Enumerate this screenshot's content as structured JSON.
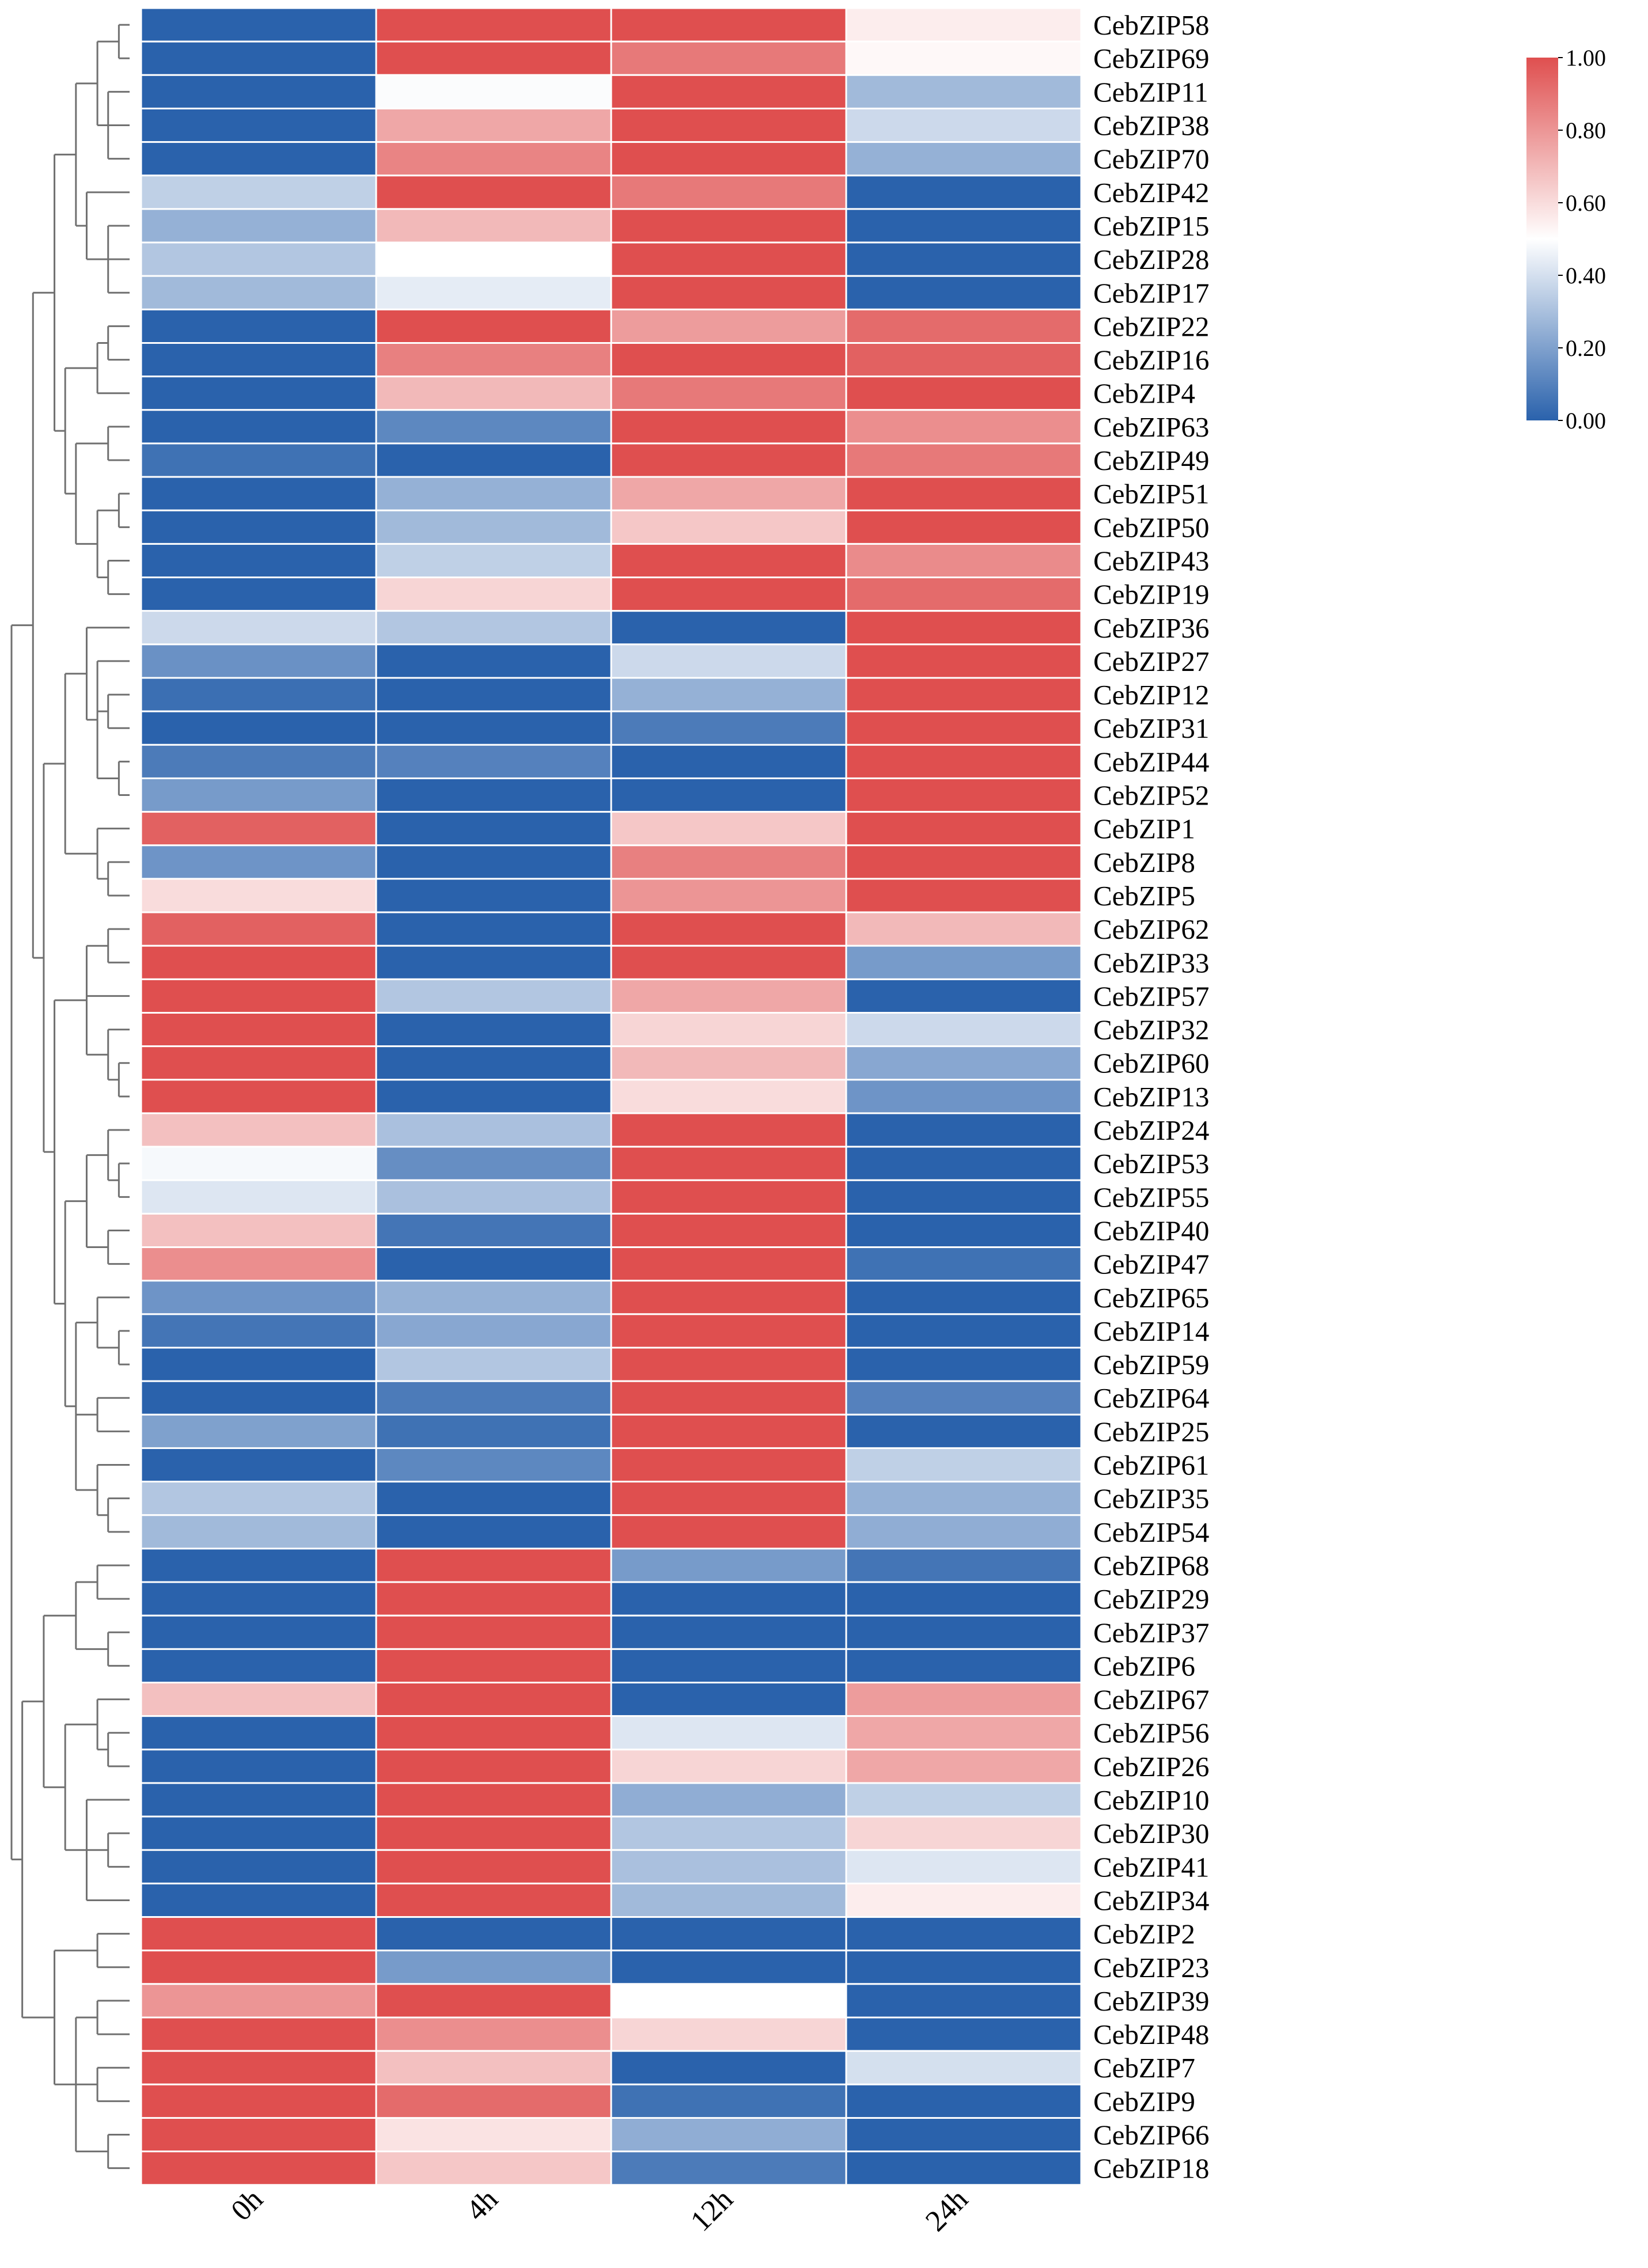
{
  "chart_data": {
    "type": "heatmap",
    "columns": [
      "0h",
      "4h",
      "12h",
      "24h"
    ],
    "rows": [
      "CebZIP58",
      "CebZIP69",
      "CebZIP11",
      "CebZIP38",
      "CebZIP70",
      "CebZIP42",
      "CebZIP15",
      "CebZIP28",
      "CebZIP17",
      "CebZIP22",
      "CebZIP16",
      "CebZIP4",
      "CebZIP63",
      "CebZIP49",
      "CebZIP51",
      "CebZIP50",
      "CebZIP43",
      "CebZIP19",
      "CebZIP36",
      "CebZIP27",
      "CebZIP12",
      "CebZIP31",
      "CebZIP44",
      "CebZIP52",
      "CebZIP1",
      "CebZIP8",
      "CebZIP5",
      "CebZIP62",
      "CebZIP33",
      "CebZIP57",
      "CebZIP32",
      "CebZIP60",
      "CebZIP13",
      "CebZIP24",
      "CebZIP53",
      "CebZIP55",
      "CebZIP40",
      "CebZIP47",
      "CebZIP65",
      "CebZIP14",
      "CebZIP59",
      "CebZIP64",
      "CebZIP25",
      "CebZIP61",
      "CebZIP35",
      "CebZIP54",
      "CebZIP68",
      "CebZIP29",
      "CebZIP37",
      "CebZIP6",
      "CebZIP67",
      "CebZIP56",
      "CebZIP26",
      "CebZIP10",
      "CebZIP30",
      "CebZIP41",
      "CebZIP34",
      "CebZIP2",
      "CebZIP23",
      "CebZIP39",
      "CebZIP48",
      "CebZIP7",
      "CebZIP9",
      "CebZIP66",
      "CebZIP18"
    ],
    "values": [
      [
        0.0,
        1.0,
        1.0,
        0.55
      ],
      [
        0.0,
        1.0,
        0.88,
        0.52
      ],
      [
        0.0,
        0.49,
        1.0,
        0.28
      ],
      [
        0.0,
        0.75,
        1.0,
        0.38
      ],
      [
        0.0,
        0.85,
        1.0,
        0.25
      ],
      [
        0.35,
        1.0,
        0.88,
        0.0
      ],
      [
        0.25,
        0.7,
        1.0,
        0.0
      ],
      [
        0.32,
        0.5,
        1.0,
        0.0
      ],
      [
        0.28,
        0.44,
        1.0,
        0.0
      ],
      [
        0.0,
        1.0,
        0.78,
        0.92
      ],
      [
        0.0,
        0.86,
        1.0,
        0.95
      ],
      [
        0.0,
        0.7,
        0.88,
        1.0
      ],
      [
        0.0,
        0.12,
        1.0,
        0.82
      ],
      [
        0.05,
        0.0,
        1.0,
        0.88
      ],
      [
        0.0,
        0.25,
        0.75,
        1.0
      ],
      [
        0.0,
        0.28,
        0.66,
        1.0
      ],
      [
        0.0,
        0.35,
        1.0,
        0.83
      ],
      [
        0.0,
        0.62,
        1.0,
        0.92
      ],
      [
        0.38,
        0.32,
        0.0,
        1.0
      ],
      [
        0.15,
        0.0,
        0.38,
        1.0
      ],
      [
        0.04,
        0.0,
        0.25,
        1.0
      ],
      [
        0.0,
        0.0,
        0.08,
        1.0
      ],
      [
        0.08,
        0.1,
        0.0,
        1.0
      ],
      [
        0.18,
        0.0,
        0.0,
        1.0
      ],
      [
        0.95,
        0.0,
        0.66,
        1.0
      ],
      [
        0.16,
        0.0,
        0.86,
        1.0
      ],
      [
        0.6,
        0.0,
        0.8,
        1.0
      ],
      [
        0.95,
        0.0,
        1.0,
        0.7
      ],
      [
        1.0,
        0.0,
        1.0,
        0.18
      ],
      [
        1.0,
        0.32,
        0.75,
        0.0
      ],
      [
        1.0,
        0.0,
        0.62,
        0.38
      ],
      [
        1.0,
        0.0,
        0.7,
        0.22
      ],
      [
        1.0,
        0.0,
        0.6,
        0.16
      ],
      [
        0.68,
        0.3,
        1.0,
        0.0
      ],
      [
        0.48,
        0.14,
        1.0,
        0.0
      ],
      [
        0.42,
        0.3,
        1.0,
        0.0
      ],
      [
        0.68,
        0.06,
        1.0,
        0.0
      ],
      [
        0.82,
        0.0,
        1.0,
        0.05
      ],
      [
        0.16,
        0.25,
        1.0,
        0.0
      ],
      [
        0.06,
        0.22,
        1.0,
        0.0
      ],
      [
        0.0,
        0.32,
        1.0,
        0.0
      ],
      [
        0.0,
        0.08,
        1.0,
        0.1
      ],
      [
        0.2,
        0.05,
        1.0,
        0.0
      ],
      [
        0.0,
        0.12,
        1.0,
        0.35
      ],
      [
        0.32,
        0.0,
        1.0,
        0.25
      ],
      [
        0.28,
        0.0,
        1.0,
        0.24
      ],
      [
        0.0,
        1.0,
        0.18,
        0.06
      ],
      [
        0.0,
        1.0,
        0.0,
        0.0
      ],
      [
        0.0,
        1.0,
        0.0,
        0.0
      ],
      [
        0.0,
        1.0,
        0.0,
        0.0
      ],
      [
        0.68,
        1.0,
        0.0,
        0.78
      ],
      [
        0.0,
        1.0,
        0.42,
        0.75
      ],
      [
        0.0,
        1.0,
        0.62,
        0.75
      ],
      [
        0.0,
        1.0,
        0.24,
        0.35
      ],
      [
        0.0,
        1.0,
        0.32,
        0.62
      ],
      [
        0.0,
        1.0,
        0.3,
        0.42
      ],
      [
        0.0,
        1.0,
        0.28,
        0.55
      ],
      [
        1.0,
        0.0,
        0.0,
        0.0
      ],
      [
        1.0,
        0.18,
        0.0,
        0.0
      ],
      [
        0.8,
        1.0,
        0.5,
        0.0
      ],
      [
        1.0,
        0.82,
        0.62,
        0.0
      ],
      [
        1.0,
        0.68,
        0.0,
        0.4
      ],
      [
        1.0,
        0.92,
        0.05,
        0.0
      ],
      [
        1.0,
        0.58,
        0.24,
        0.0
      ],
      [
        1.0,
        0.66,
        0.08,
        0.0
      ]
    ],
    "colorbar": {
      "ticks": [
        "1.00",
        "0.80",
        "0.60",
        "0.40",
        "0.20",
        "0.00"
      ],
      "range": [
        0,
        1
      ],
      "colors": {
        "low": "#2a62ac",
        "mid": "#ffffff",
        "high": "#df4f4f"
      }
    }
  }
}
